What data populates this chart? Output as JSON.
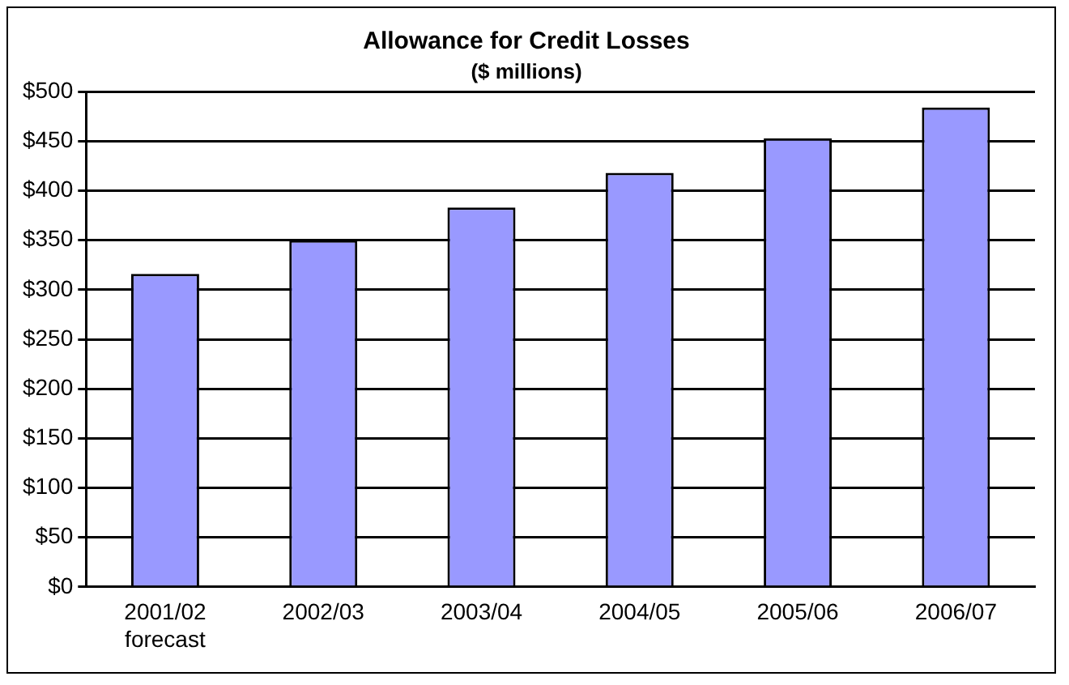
{
  "chart_data": {
    "type": "bar",
    "title": "Allowance for Credit Losses",
    "subtitle": "($ millions)",
    "categories": [
      "2001/02 forecast",
      "2002/03",
      "2003/04",
      "2004/05",
      "2005/06",
      "2006/07"
    ],
    "values": [
      316,
      350,
      383,
      418,
      453,
      484
    ],
    "color": "#9999ff",
    "ylim": [
      0,
      500
    ],
    "yticks": [
      {
        "value": 0,
        "label": "$0"
      },
      {
        "value": 50,
        "label": "$50"
      },
      {
        "value": 100,
        "label": "$100"
      },
      {
        "value": 150,
        "label": "$150"
      },
      {
        "value": 200,
        "label": "$200"
      },
      {
        "value": 250,
        "label": "$250"
      },
      {
        "value": 300,
        "label": "$300"
      },
      {
        "value": 350,
        "label": "$350"
      },
      {
        "value": 400,
        "label": "$400"
      },
      {
        "value": 450,
        "label": "$450"
      },
      {
        "value": 500,
        "label": "$500"
      }
    ],
    "grid": "y",
    "legend": false
  }
}
